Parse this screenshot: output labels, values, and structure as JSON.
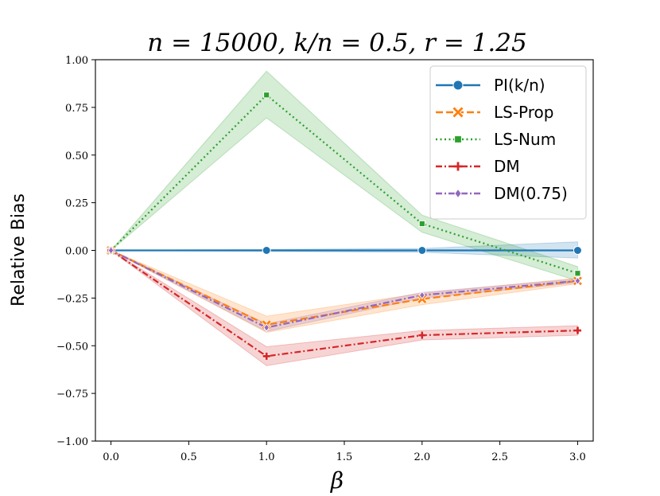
{
  "chart_data": {
    "type": "line",
    "title": "n = 15000, k/n = 0.5, r = 1.25",
    "xlabel": "β",
    "ylabel": "Relative Bias",
    "xlim": [
      -0.1,
      3.1
    ],
    "ylim": [
      -1.0,
      1.0
    ],
    "x_ticks": [
      0.0,
      0.5,
      1.0,
      1.5,
      2.0,
      2.5,
      3.0
    ],
    "x_tick_labels": [
      "0.0",
      "0.5",
      "1.0",
      "1.5",
      "2.0",
      "2.5",
      "3.0"
    ],
    "y_ticks": [
      1.0,
      0.75,
      0.5,
      0.25,
      0.0,
      -0.25,
      -0.5,
      -0.75,
      -1.0
    ],
    "y_tick_labels": [
      "1.00",
      "0.75",
      "0.50",
      "0.25",
      "0.00",
      "−0.25",
      "−0.50",
      "−0.75",
      "−1.00"
    ],
    "grid": false,
    "legend_position": "top-right",
    "x": [
      0.0,
      1.0,
      2.0,
      3.0
    ],
    "series": [
      {
        "name": "PI(k/n)",
        "color": "#1f77b4",
        "marker": "circle",
        "dash": "solid",
        "values": [
          0.0,
          0.0,
          0.0,
          0.0
        ],
        "ci_low": [
          0.0,
          -0.005,
          -0.01,
          -0.04
        ],
        "ci_high": [
          0.0,
          0.005,
          0.01,
          0.045
        ]
      },
      {
        "name": "LS-Prop",
        "color": "#ff7f0e",
        "marker": "x",
        "dash": "dashed",
        "values": [
          0.0,
          -0.39,
          -0.255,
          -0.16
        ],
        "ci_low": [
          0.0,
          -0.43,
          -0.285,
          -0.175
        ],
        "ci_high": [
          0.0,
          -0.345,
          -0.225,
          -0.145
        ]
      },
      {
        "name": "LS-Num",
        "color": "#2ca02c",
        "marker": "square",
        "dash": "dotted",
        "values": [
          0.0,
          0.815,
          0.14,
          -0.12
        ],
        "ci_low": [
          0.0,
          0.695,
          0.095,
          -0.16
        ],
        "ci_high": [
          0.0,
          0.94,
          0.185,
          -0.085
        ]
      },
      {
        "name": "DM",
        "color": "#d62728",
        "marker": "plus",
        "dash": "dashdot",
        "values": [
          0.0,
          -0.555,
          -0.445,
          -0.42
        ],
        "ci_low": [
          0.0,
          -0.605,
          -0.47,
          -0.445
        ],
        "ci_high": [
          0.0,
          -0.505,
          -0.42,
          -0.395
        ]
      },
      {
        "name": "DM(0.75)",
        "color": "#9467bd",
        "marker": "diamond",
        "dash": "dashdot",
        "values": [
          0.0,
          -0.405,
          -0.235,
          -0.16
        ],
        "ci_low": [
          0.0,
          -0.425,
          -0.25,
          -0.17
        ],
        "ci_high": [
          0.0,
          -0.385,
          -0.22,
          -0.15
        ]
      }
    ]
  }
}
